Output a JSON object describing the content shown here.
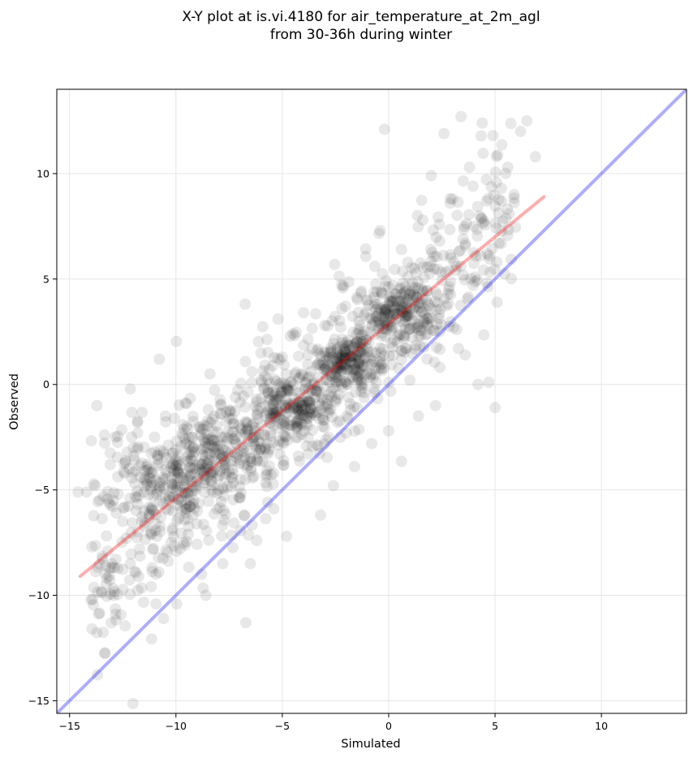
{
  "chart_data": {
    "type": "scatter",
    "title": "X-Y plot at is.vi.4180 for air_temperature_at_2m_agl",
    "subtitle": "from 30-36h during winter",
    "xlabel": "Simulated",
    "ylabel": "Observed",
    "xlim": [
      -15.6,
      14.0
    ],
    "ylim": [
      -15.6,
      14.0
    ],
    "xticks": [
      -15,
      -10,
      -5,
      0,
      5,
      10
    ],
    "yticks": [
      -15,
      -10,
      -5,
      0,
      5,
      10
    ],
    "xtick_labels": [
      "−15",
      "−10",
      "−5",
      "0",
      "5",
      "10"
    ],
    "ytick_labels": [
      "−15",
      "−10",
      "−5",
      "0",
      "5",
      "10"
    ],
    "grid": true,
    "point_color": "#000000",
    "point_alpha": 0.09,
    "point_cloud": {
      "approx_count": 1500,
      "dense_centers": [
        {
          "x": 0.6,
          "y": 3.4,
          "sd": 0.7
        },
        {
          "x": -1.8,
          "y": 1.0,
          "sd": 0.6
        },
        {
          "x": -4.5,
          "y": -1.2,
          "sd": 0.8
        },
        {
          "x": -7.8,
          "y": -3.2,
          "sd": 1.0
        },
        {
          "x": -10.5,
          "y": -4.5,
          "sd": 1.2
        }
      ]
    },
    "series": [
      {
        "kind": "scatter",
        "points": [
          [
            -14.6,
            -5.1
          ],
          [
            -14.2,
            -5.1
          ],
          [
            -13.8,
            -4.8
          ],
          [
            -13.4,
            -5.3
          ],
          [
            -13.2,
            -7.9
          ],
          [
            -13.0,
            -8.5
          ],
          [
            -12.8,
            -6.1
          ],
          [
            -12.5,
            -6.5
          ],
          [
            -12.2,
            -4.0
          ],
          [
            -12.0,
            -3.0
          ],
          [
            -11.8,
            -2.3
          ],
          [
            -11.5,
            -6.0
          ],
          [
            -11.2,
            -7.1
          ],
          [
            -11.0,
            -2.5
          ],
          [
            -10.8,
            -8.9
          ],
          [
            -10.5,
            -1.5
          ],
          [
            -10.3,
            -5.5
          ],
          [
            -10.0,
            -3.1
          ],
          [
            -9.8,
            -7.8
          ],
          [
            -9.5,
            -2.0
          ],
          [
            -9.3,
            -4.3
          ],
          [
            -9.0,
            -6.0
          ],
          [
            -8.8,
            -9.0
          ],
          [
            -8.6,
            -10.0
          ],
          [
            -8.4,
            0.5
          ],
          [
            -8.2,
            -1.5
          ],
          [
            -8.0,
            -5.0
          ],
          [
            -7.8,
            -8.5
          ],
          [
            -7.6,
            -2.7
          ],
          [
            -7.4,
            -4.4
          ],
          [
            -7.2,
            -0.6
          ],
          [
            -7.0,
            -3.6
          ],
          [
            -6.8,
            -6.2
          ],
          [
            -6.5,
            -8.5
          ],
          [
            -6.3,
            -2.4
          ],
          [
            -6.2,
            -7.4
          ],
          [
            -6.0,
            0.2
          ],
          [
            -5.8,
            -3.0
          ],
          [
            -5.6,
            -1.8
          ],
          [
            -5.4,
            -5.9
          ],
          [
            -5.2,
            3.1
          ],
          [
            -5.0,
            1.3
          ],
          [
            -4.8,
            -7.2
          ],
          [
            -4.7,
            -0.9
          ],
          [
            -4.5,
            2.4
          ],
          [
            -4.3,
            -2.0
          ],
          [
            -4.1,
            0.5
          ],
          [
            -4.0,
            3.4
          ],
          [
            -3.8,
            -3.3
          ],
          [
            -3.6,
            1.7
          ],
          [
            -3.4,
            -0.3
          ],
          [
            -3.2,
            -6.2
          ],
          [
            -3.0,
            2.8
          ],
          [
            -2.8,
            -1.2
          ],
          [
            -2.6,
            -4.8
          ],
          [
            -2.4,
            0.9
          ],
          [
            -2.2,
            3.6
          ],
          [
            -2.0,
            -2.3
          ],
          [
            -1.8,
            1.1
          ],
          [
            -1.6,
            -3.9
          ],
          [
            -1.4,
            2.6
          ],
          [
            -1.2,
            0.0
          ],
          [
            -1.0,
            4.0
          ],
          [
            -0.8,
            -2.8
          ],
          [
            -0.6,
            1.5
          ],
          [
            -0.4,
            7.3
          ],
          [
            -0.2,
            12.1
          ],
          [
            0.0,
            -2.2
          ],
          [
            0.2,
            4.7
          ],
          [
            0.4,
            2.0
          ],
          [
            0.6,
            6.4
          ],
          [
            0.8,
            3.4
          ],
          [
            1.0,
            0.2
          ],
          [
            1.2,
            5.5
          ],
          [
            1.4,
            -1.5
          ],
          [
            1.6,
            7.8
          ],
          [
            1.8,
            2.9
          ],
          [
            2.0,
            9.9
          ],
          [
            2.2,
            -1.0
          ],
          [
            2.4,
            6.8
          ],
          [
            2.6,
            11.9
          ],
          [
            2.8,
            4.3
          ],
          [
            3.0,
            8.8
          ],
          [
            3.2,
            2.6
          ],
          [
            3.4,
            12.7
          ],
          [
            3.6,
            1.4
          ],
          [
            3.8,
            10.3
          ],
          [
            4.0,
            7.5
          ],
          [
            4.2,
            0.0
          ],
          [
            4.4,
            12.4
          ],
          [
            4.6,
            8.7
          ],
          [
            4.7,
            0.1
          ],
          [
            4.9,
            11.8
          ],
          [
            5.0,
            -1.1
          ],
          [
            5.3,
            9.3
          ],
          [
            5.6,
            10.3
          ],
          [
            5.9,
            9.0
          ],
          [
            6.2,
            12.0
          ],
          [
            6.5,
            12.5
          ],
          [
            6.9,
            10.8
          ]
        ]
      },
      {
        "kind": "line",
        "name": "",
        "color": "#ff0000",
        "opacity": 0.32,
        "points": [
          [
            -14.5,
            -9.1
          ],
          [
            7.3,
            8.9
          ]
        ]
      },
      {
        "kind": "line",
        "name": "",
        "color": "#0000ff",
        "opacity": 0.32,
        "points": [
          [
            -15.6,
            -15.6
          ],
          [
            14.0,
            14.0
          ]
        ]
      }
    ]
  }
}
